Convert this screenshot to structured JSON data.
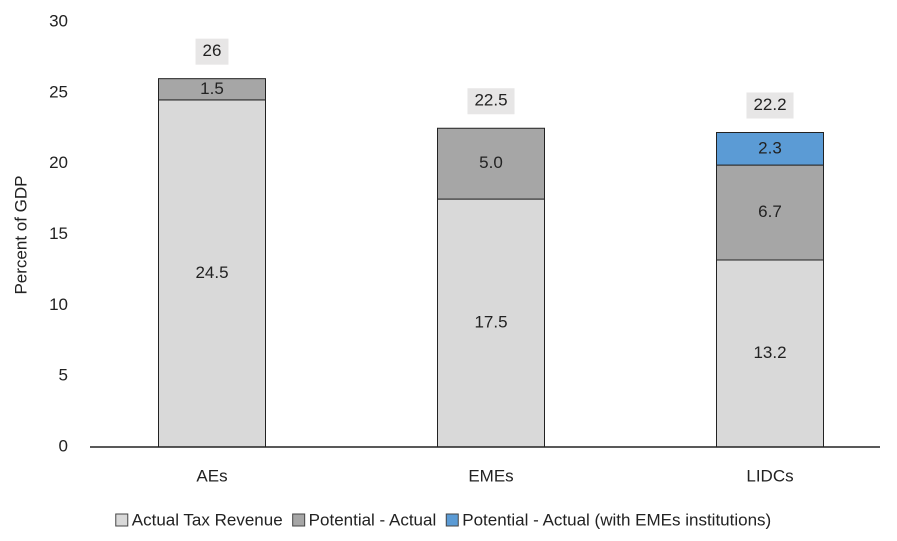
{
  "chart_data": {
    "type": "stacked_bar",
    "y_label": "Percent of GDP",
    "categories": [
      "AEs",
      "EMEs",
      "LIDCs"
    ],
    "series": [
      {
        "name": "Actual Tax Revenue",
        "color": "#d9d9d9",
        "values": [
          24.5,
          17.5,
          13.2
        ]
      },
      {
        "name": "Potential - Actual",
        "color": "#a6a6a6",
        "values": [
          1.5,
          5.0,
          6.7
        ],
        "value_labels": [
          "1.5",
          "5.0",
          "6.7"
        ]
      },
      {
        "name": "Potential - Actual (with EMEs institutions)",
        "color": "#5b9bd5",
        "values": [
          null,
          null,
          2.3
        ]
      }
    ],
    "totals": [
      26,
      22.5,
      22.2
    ],
    "ylim": [
      0,
      30
    ],
    "yticks": [
      0,
      5,
      10,
      15,
      20,
      25,
      30
    ],
    "legend": "bottom"
  }
}
